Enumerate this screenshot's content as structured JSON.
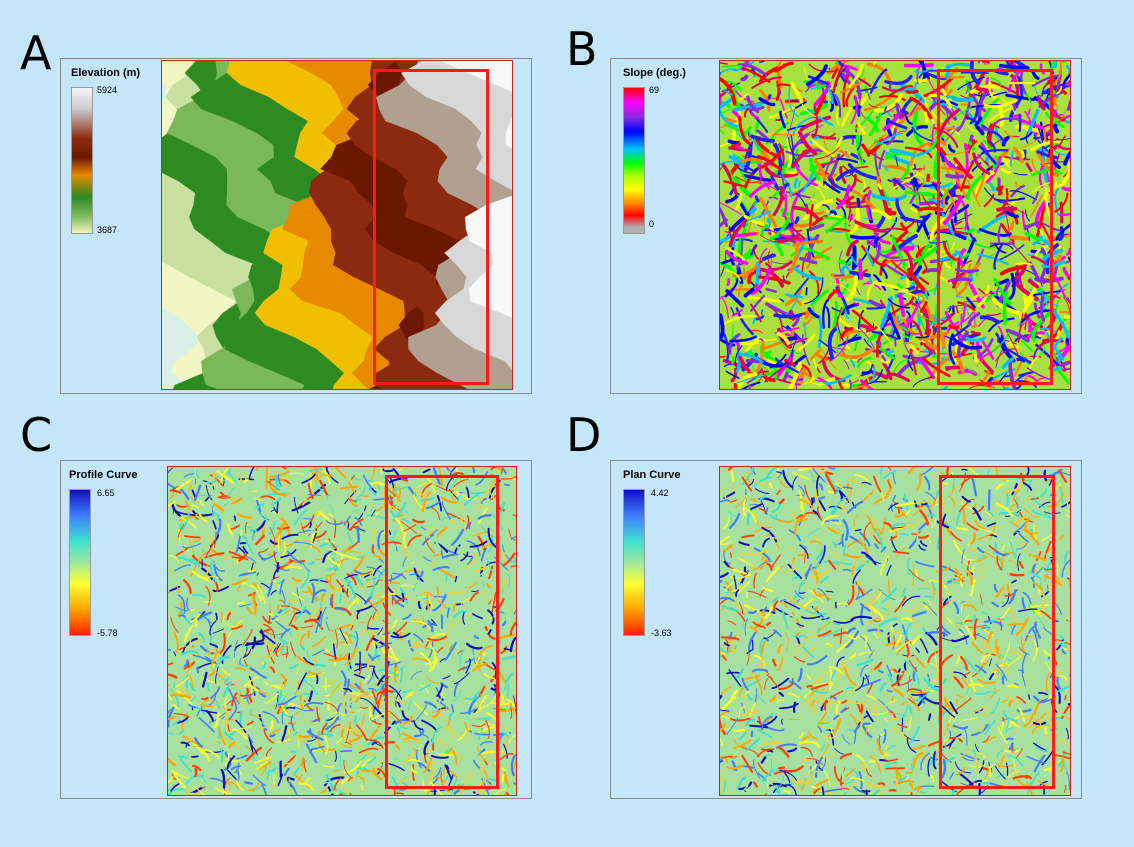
{
  "panels": [
    {
      "letter": "A",
      "legend_title": "Elevation (m)",
      "legend_max": "5924",
      "legend_min": "3687",
      "colors": [
        "#f8f8f8",
        "#c8c8c8",
        "#8b2a0e",
        "#6a1800",
        "#e88a00",
        "#2e8b22",
        "#7ab85a",
        "#f2f5c4"
      ]
    },
    {
      "letter": "B",
      "legend_title": "Slope (deg.)",
      "legend_max": "69",
      "legend_min": "0",
      "colors": [
        "#ff0000",
        "#ff00ff",
        "#8a2be2",
        "#0000ff",
        "#00bfff",
        "#00ff00",
        "#a0ff00",
        "#ffff00",
        "#ff8000",
        "#ff0000",
        "#b0b0b0"
      ]
    },
    {
      "letter": "C",
      "legend_title": "Profile Curve",
      "legend_max": "6.65",
      "legend_min": "-5.78",
      "colors": [
        "#1010c0",
        "#3f7fff",
        "#40e0d0",
        "#9ee89e",
        "#ffff30",
        "#ffa500",
        "#ff2000"
      ]
    },
    {
      "letter": "D",
      "legend_title": "Plan Curve",
      "legend_max": "4.42",
      "legend_min": "-3.63",
      "colors": [
        "#1010c0",
        "#3f7fff",
        "#40e0d0",
        "#9ee89e",
        "#ffff30",
        "#ffa500",
        "#ff2000"
      ]
    }
  ]
}
